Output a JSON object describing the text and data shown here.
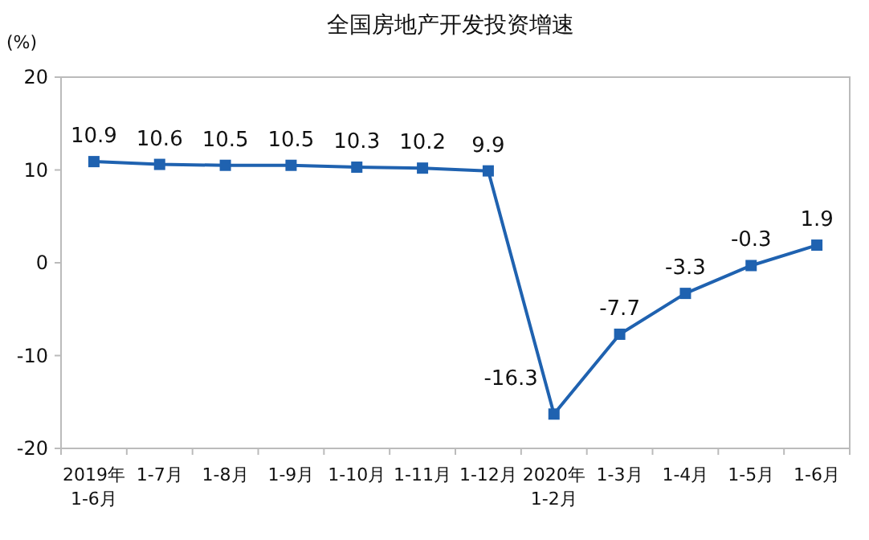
{
  "chart_data": {
    "type": "line",
    "title": "全国房地产开发投资增速",
    "ylabel": "(%)",
    "categories": [
      "2019年\n1-6月",
      "1-7月",
      "1-8月",
      "1-9月",
      "1-10月",
      "1-11月",
      "1-12月",
      "2020年\n1-2月",
      "1-3月",
      "1-4月",
      "1-5月",
      "1-6月"
    ],
    "series": [
      {
        "color": "#1f62b0",
        "values": [
          10.9,
          10.6,
          10.5,
          10.5,
          10.3,
          10.2,
          9.9,
          -16.3,
          -7.7,
          -3.3,
          -0.3,
          1.9
        ]
      }
    ],
    "ylim": [
      -20,
      20
    ],
    "yticks": [
      -20,
      -10,
      0,
      10,
      20
    ],
    "data_labels": true,
    "marker": "square"
  }
}
